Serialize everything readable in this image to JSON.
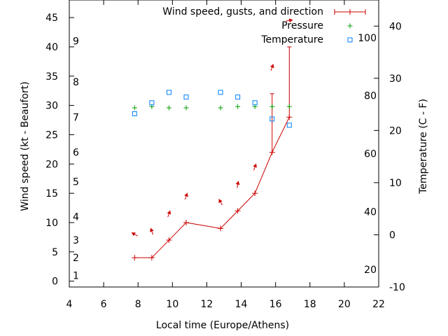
{
  "chart_data": {
    "type": "line",
    "xlabel": "Local time (Europe/Athens)",
    "ylabel": "Wind speed (kt - Beaufort)",
    "y2label": "Temperature (C - F)",
    "xlim": [
      4,
      22
    ],
    "ylim": [
      -1,
      48
    ],
    "y2lim": [
      -10,
      45
    ],
    "x_ticks": [
      "4",
      "6",
      "8",
      "10",
      "12",
      "14",
      "16",
      "18",
      "20",
      "22"
    ],
    "y_ticks": [
      "0",
      "5",
      "10",
      "15",
      "20",
      "25",
      "30",
      "35",
      "40",
      "45"
    ],
    "y2_ticks": [
      "-10",
      "0",
      "10",
      "20",
      "30",
      "40"
    ],
    "beaufort_labels": [
      {
        "label": "1",
        "kt": 1
      },
      {
        "label": "2",
        "kt": 4
      },
      {
        "label": "3",
        "kt": 7
      },
      {
        "label": "4",
        "kt": 11
      },
      {
        "label": "5",
        "kt": 17
      },
      {
        "label": "6",
        "kt": 22
      },
      {
        "label": "7",
        "kt": 28
      },
      {
        "label": "8",
        "kt": 34
      },
      {
        "label": "9",
        "kt": 41
      }
    ],
    "fahrenheit_labels": [
      {
        "label": "20",
        "c": -6.67
      },
      {
        "label": "40",
        "c": 4.44
      },
      {
        "label": "60",
        "c": 15.56
      },
      {
        "label": "80",
        "c": 26.67
      },
      {
        "label": "100",
        "c": 37.78
      }
    ],
    "legend": {
      "position": "top-right",
      "entries": [
        "Wind speed, gusts, and direction",
        "Pressure",
        "Temperature"
      ]
    },
    "series": [
      {
        "name": "Wind speed, gusts, and direction",
        "color": "#cc0000",
        "points": [
          {
            "x": 7.8,
            "y": 4
          },
          {
            "x": 8.8,
            "y": 4
          },
          {
            "x": 9.8,
            "y": 7
          },
          {
            "x": 10.8,
            "y": 10
          },
          {
            "x": 12.8,
            "y": 9
          },
          {
            "x": 13.8,
            "y": 12
          },
          {
            "x": 14.8,
            "y": 15
          },
          {
            "x": 15.8,
            "y": 22,
            "gust": 32
          },
          {
            "x": 16.8,
            "y": 28,
            "gust": 40
          }
        ],
        "direction_arrows": [
          {
            "x": 7.8,
            "kt": 8,
            "bearing": 300
          },
          {
            "x": 8.8,
            "kt": 8.5,
            "bearing": 340
          },
          {
            "x": 9.8,
            "kt": 11.5,
            "bearing": 20
          },
          {
            "x": 10.8,
            "kt": 14.5,
            "bearing": 20
          },
          {
            "x": 12.8,
            "kt": 13.5,
            "bearing": 330
          },
          {
            "x": 13.8,
            "kt": 16.5,
            "bearing": 10
          },
          {
            "x": 14.8,
            "kt": 19.5,
            "bearing": 20
          },
          {
            "x": 15.8,
            "kt": 36.5,
            "bearing": 20
          },
          {
            "x": 16.8,
            "kt": 44.5,
            "bearing": 80
          }
        ]
      },
      {
        "name": "Pressure",
        "color": "#00a000",
        "points": [
          {
            "x": 7.8,
            "y": 29.6
          },
          {
            "x": 8.8,
            "y": 29.8
          },
          {
            "x": 9.8,
            "y": 29.6
          },
          {
            "x": 10.8,
            "y": 29.6
          },
          {
            "x": 12.8,
            "y": 29.6
          },
          {
            "x": 13.8,
            "y": 29.8
          },
          {
            "x": 14.8,
            "y": 29.8
          },
          {
            "x": 15.8,
            "y": 29.8
          },
          {
            "x": 16.8,
            "y": 29.8
          }
        ]
      },
      {
        "name": "Temperature",
        "color": "#0080ff",
        "axis": "y2",
        "points": [
          {
            "x": 7.8,
            "y": 23.2
          },
          {
            "x": 8.8,
            "y": 25.3
          },
          {
            "x": 9.8,
            "y": 27.3
          },
          {
            "x": 10.8,
            "y": 26.4
          },
          {
            "x": 12.8,
            "y": 27.3
          },
          {
            "x": 13.8,
            "y": 26.4
          },
          {
            "x": 14.8,
            "y": 25.3
          },
          {
            "x": 15.8,
            "y": 22.2
          },
          {
            "x": 16.8,
            "y": 21.0
          }
        ]
      }
    ]
  }
}
